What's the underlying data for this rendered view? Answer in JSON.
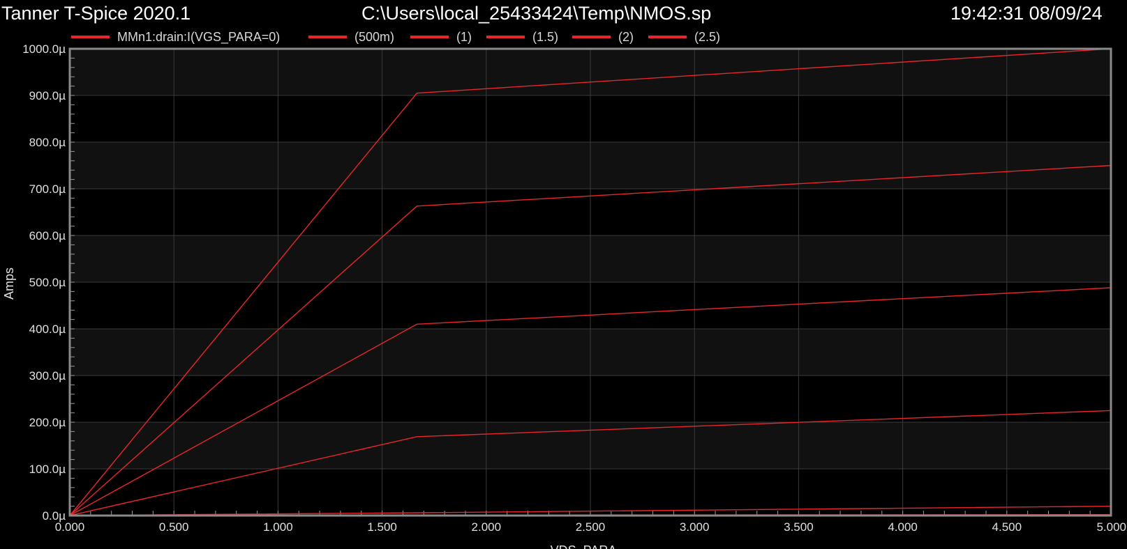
{
  "header": {
    "app_title": "Tanner T-Spice 2020.1",
    "file_path": "C:\\Users\\local_25433424\\Temp\\NMOS.sp",
    "timestamp": "19:42:31 08/09/24"
  },
  "colors": {
    "background": "#000000",
    "trace": "#e8262b",
    "frame": "#8a8a8a",
    "grid": "#3a3a3a",
    "band": "#111111"
  },
  "chart_data": {
    "type": "line",
    "title": "",
    "xlabel": "VDS_PARA",
    "ylabel": "Amps",
    "xlim": [
      0,
      5
    ],
    "ylim": [
      0,
      0.001
    ],
    "grid": true,
    "legend_position": "top",
    "x_ticks": [
      "0.000",
      "0.500",
      "1.000",
      "1.500",
      "2.000",
      "2.500",
      "3.000",
      "3.500",
      "4.000",
      "4.500",
      "5.000"
    ],
    "y_ticks": [
      "0.0µ",
      "100.0µ",
      "200.0µ",
      "300.0µ",
      "400.0µ",
      "500.0µ",
      "600.0µ",
      "700.0µ",
      "800.0µ",
      "900.0µ",
      "1000.0µ"
    ],
    "series": [
      {
        "name": "MMn1:drain:I(VGS_PARA=0)",
        "x": [
          0,
          1.667,
          5
        ],
        "y": [
          0,
          1e-06,
          2e-06
        ]
      },
      {
        "name": "(500m)",
        "x": [
          0,
          1.667,
          5
        ],
        "y": [
          0,
          6e-06,
          2e-05
        ]
      },
      {
        "name": "(1)",
        "x": [
          0,
          1.667,
          5
        ],
        "y": [
          0,
          0.000169,
          0.000225
        ]
      },
      {
        "name": "(1.5)",
        "x": [
          0,
          1.667,
          5
        ],
        "y": [
          0,
          0.00041,
          0.000488
        ]
      },
      {
        "name": "(2)",
        "x": [
          0,
          1.667,
          5
        ],
        "y": [
          0,
          0.000663,
          0.00075
        ]
      },
      {
        "name": "(2.5)",
        "x": [
          0,
          1.667,
          5
        ],
        "y": [
          0,
          0.000905,
          0.001
        ]
      }
    ]
  }
}
